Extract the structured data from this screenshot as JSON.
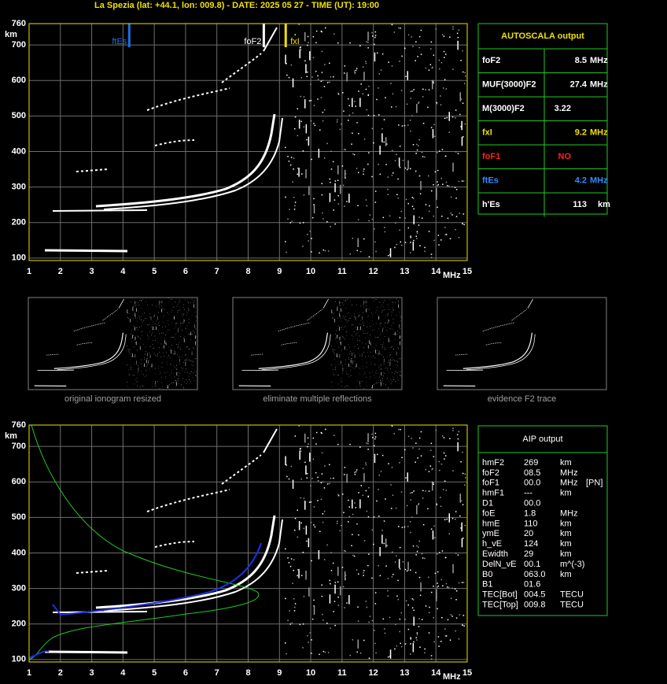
{
  "header": {
    "title": "La Spezia (lat: +44.1, lon: 009.8) - DATE: 2025 05 27 - TIME (UT): 19:00"
  },
  "ionogram": {
    "xlim": [
      1,
      15
    ],
    "ylim": [
      93,
      760
    ],
    "xticks": [
      1,
      2,
      3,
      4,
      5,
      6,
      7,
      8,
      9,
      10,
      11,
      12,
      13,
      14,
      15
    ],
    "yticks": [
      100,
      200,
      300,
      400,
      500,
      600,
      700,
      760
    ],
    "y_unit": "km",
    "x_unit": "MHz"
  },
  "markers": [
    {
      "label": "ftEs",
      "row": 5,
      "color": "#1e6ee6"
    },
    {
      "label": "foF2",
      "row": 0,
      "color": "#ffffff"
    },
    {
      "label": "fxI",
      "row": 3,
      "color": "#f0e000"
    }
  ],
  "autoscala": {
    "title": "AUTOSCALA output",
    "rows": [
      {
        "label": "foF2",
        "value": 8.5,
        "unit": "MHz",
        "color": "#ffffff"
      },
      {
        "label": "MUF(3000)F2",
        "value": 27.4,
        "unit": "MHz",
        "color": "#ffffff"
      },
      {
        "label": "M(3000)F2",
        "value": 3.22,
        "color": "#ffffff"
      },
      {
        "label": "fxI",
        "value": 9.2,
        "unit": "MHz",
        "color": "#f0e000"
      },
      {
        "label": "foF1",
        "value": "NO",
        "color": "#ff2020"
      },
      {
        "label": "ftEs",
        "value": 4.2,
        "unit": "MHz",
        "color": "#2a8cff"
      },
      {
        "label": "h'Es",
        "value": 113,
        "unit": "km",
        "color": "#ffffff"
      }
    ]
  },
  "thumbnails": [
    "original ionogram resized",
    "eliminate multiple reflections",
    "evidence F2 trace"
  ],
  "aip": {
    "title": "AIP output",
    "rows": [
      [
        "hmF2",
        "269",
        "km"
      ],
      [
        "foF2",
        "08.5",
        "MHz"
      ],
      [
        "foF1",
        "00.0",
        "MHz",
        "[PN]"
      ],
      [
        "hmF1",
        "---",
        "km"
      ],
      [
        "D1",
        "00.0"
      ],
      [
        "foE",
        "1.8",
        "MHz"
      ],
      [
        "hmE",
        "110",
        "km"
      ],
      [
        "ymE",
        "20",
        "km"
      ],
      [
        "h_vE",
        "124",
        "km"
      ],
      [
        "Ewidth",
        "29",
        "km"
      ],
      [
        "DelN_vE",
        "00.1",
        "m^(-3)"
      ],
      [
        "B0",
        "063.0",
        "km"
      ],
      [
        "B1",
        "01.6"
      ],
      [
        "TEC[Bot]",
        "004.5",
        "TECU"
      ],
      [
        "TEC[Top]",
        "009.8",
        "TECU"
      ]
    ]
  }
}
